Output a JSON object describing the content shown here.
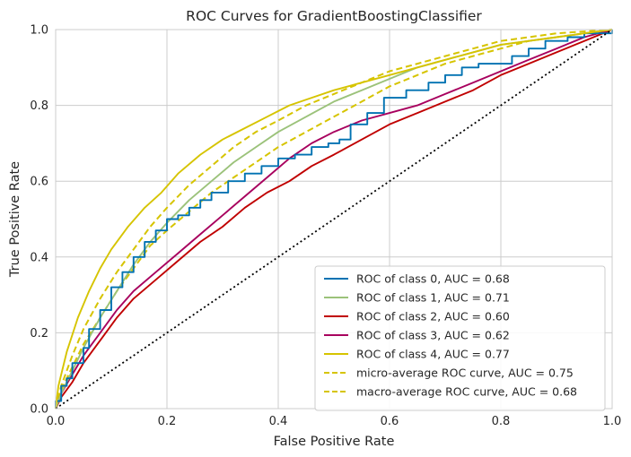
{
  "chart_data": {
    "type": "line",
    "title": "ROC Curves for GradientBoostingClassifier",
    "xlabel": "False Positive Rate",
    "ylabel": "True Positive Rate",
    "xlim": [
      0.0,
      1.0
    ],
    "ylim": [
      0.0,
      1.0
    ],
    "x_ticks": [
      "0.0",
      "0.2",
      "0.4",
      "0.6",
      "0.8",
      "1.0"
    ],
    "y_ticks": [
      "0.0",
      "0.2",
      "0.4",
      "0.6",
      "0.8",
      "1.0"
    ],
    "grid": true,
    "legend_position": "lower-right",
    "series": [
      {
        "name": "ROC of class 0, AUC = 0.68",
        "color": "#0072b2",
        "dash": "solid",
        "step": true,
        "points": [
          [
            0,
            0
          ],
          [
            0.0,
            0.02
          ],
          [
            0.01,
            0.06
          ],
          [
            0.02,
            0.08
          ],
          [
            0.03,
            0.12
          ],
          [
            0.05,
            0.16
          ],
          [
            0.06,
            0.21
          ],
          [
            0.08,
            0.26
          ],
          [
            0.1,
            0.32
          ],
          [
            0.12,
            0.36
          ],
          [
            0.14,
            0.4
          ],
          [
            0.16,
            0.44
          ],
          [
            0.18,
            0.47
          ],
          [
            0.2,
            0.5
          ],
          [
            0.22,
            0.51
          ],
          [
            0.24,
            0.53
          ],
          [
            0.26,
            0.55
          ],
          [
            0.28,
            0.57
          ],
          [
            0.31,
            0.6
          ],
          [
            0.34,
            0.62
          ],
          [
            0.37,
            0.64
          ],
          [
            0.4,
            0.66
          ],
          [
            0.43,
            0.67
          ],
          [
            0.46,
            0.69
          ],
          [
            0.49,
            0.7
          ],
          [
            0.51,
            0.71
          ],
          [
            0.53,
            0.75
          ],
          [
            0.56,
            0.78
          ],
          [
            0.59,
            0.82
          ],
          [
            0.63,
            0.84
          ],
          [
            0.67,
            0.86
          ],
          [
            0.7,
            0.88
          ],
          [
            0.73,
            0.9
          ],
          [
            0.76,
            0.91
          ],
          [
            0.8,
            0.91
          ],
          [
            0.82,
            0.93
          ],
          [
            0.85,
            0.95
          ],
          [
            0.88,
            0.97
          ],
          [
            0.92,
            0.98
          ],
          [
            0.95,
            0.99
          ],
          [
            1.0,
            1.0
          ]
        ]
      },
      {
        "name": "ROC of class 1, AUC = 0.71",
        "color": "#9bc27a",
        "dash": "solid",
        "step": false,
        "points": [
          [
            0,
            0
          ],
          [
            0.01,
            0.04
          ],
          [
            0.03,
            0.1
          ],
          [
            0.05,
            0.16
          ],
          [
            0.08,
            0.24
          ],
          [
            0.11,
            0.31
          ],
          [
            0.14,
            0.38
          ],
          [
            0.17,
            0.44
          ],
          [
            0.2,
            0.49
          ],
          [
            0.24,
            0.55
          ],
          [
            0.28,
            0.6
          ],
          [
            0.32,
            0.65
          ],
          [
            0.36,
            0.69
          ],
          [
            0.4,
            0.73
          ],
          [
            0.45,
            0.77
          ],
          [
            0.5,
            0.81
          ],
          [
            0.55,
            0.84
          ],
          [
            0.6,
            0.87
          ],
          [
            0.65,
            0.9
          ],
          [
            0.7,
            0.92
          ],
          [
            0.75,
            0.94
          ],
          [
            0.8,
            0.96
          ],
          [
            0.85,
            0.97
          ],
          [
            0.9,
            0.98
          ],
          [
            0.95,
            0.99
          ],
          [
            1.0,
            1.0
          ]
        ]
      },
      {
        "name": "ROC of class 2, AUC = 0.60",
        "color": "#c00000",
        "dash": "solid",
        "step": false,
        "points": [
          [
            0,
            0
          ],
          [
            0.01,
            0.03
          ],
          [
            0.03,
            0.07
          ],
          [
            0.05,
            0.12
          ],
          [
            0.08,
            0.18
          ],
          [
            0.11,
            0.24
          ],
          [
            0.14,
            0.29
          ],
          [
            0.18,
            0.34
          ],
          [
            0.22,
            0.39
          ],
          [
            0.26,
            0.44
          ],
          [
            0.3,
            0.48
          ],
          [
            0.34,
            0.53
          ],
          [
            0.38,
            0.57
          ],
          [
            0.42,
            0.6
          ],
          [
            0.46,
            0.64
          ],
          [
            0.5,
            0.67
          ],
          [
            0.55,
            0.71
          ],
          [
            0.6,
            0.75
          ],
          [
            0.65,
            0.78
          ],
          [
            0.7,
            0.81
          ],
          [
            0.75,
            0.84
          ],
          [
            0.8,
            0.88
          ],
          [
            0.85,
            0.91
          ],
          [
            0.9,
            0.94
          ],
          [
            0.95,
            0.97
          ],
          [
            1.0,
            1.0
          ]
        ]
      },
      {
        "name": "ROC of class 3, AUC = 0.62",
        "color": "#a8005e",
        "dash": "solid",
        "step": false,
        "points": [
          [
            0,
            0
          ],
          [
            0.01,
            0.04
          ],
          [
            0.03,
            0.09
          ],
          [
            0.05,
            0.14
          ],
          [
            0.08,
            0.2
          ],
          [
            0.11,
            0.26
          ],
          [
            0.14,
            0.31
          ],
          [
            0.18,
            0.36
          ],
          [
            0.22,
            0.41
          ],
          [
            0.26,
            0.46
          ],
          [
            0.3,
            0.51
          ],
          [
            0.34,
            0.56
          ],
          [
            0.38,
            0.61
          ],
          [
            0.42,
            0.66
          ],
          [
            0.46,
            0.7
          ],
          [
            0.5,
            0.73
          ],
          [
            0.55,
            0.76
          ],
          [
            0.6,
            0.78
          ],
          [
            0.65,
            0.8
          ],
          [
            0.7,
            0.83
          ],
          [
            0.75,
            0.86
          ],
          [
            0.8,
            0.89
          ],
          [
            0.85,
            0.92
          ],
          [
            0.9,
            0.95
          ],
          [
            0.95,
            0.98
          ],
          [
            1.0,
            1.0
          ]
        ]
      },
      {
        "name": "ROC of class 4, AUC = 0.77",
        "color": "#d6c400",
        "dash": "solid",
        "step": false,
        "points": [
          [
            0,
            0
          ],
          [
            0.005,
            0.06
          ],
          [
            0.02,
            0.15
          ],
          [
            0.04,
            0.24
          ],
          [
            0.06,
            0.31
          ],
          [
            0.08,
            0.37
          ],
          [
            0.1,
            0.42
          ],
          [
            0.13,
            0.48
          ],
          [
            0.16,
            0.53
          ],
          [
            0.19,
            0.57
          ],
          [
            0.22,
            0.62
          ],
          [
            0.26,
            0.67
          ],
          [
            0.3,
            0.71
          ],
          [
            0.34,
            0.74
          ],
          [
            0.38,
            0.77
          ],
          [
            0.42,
            0.8
          ],
          [
            0.46,
            0.82
          ],
          [
            0.5,
            0.84
          ],
          [
            0.55,
            0.86
          ],
          [
            0.6,
            0.88
          ],
          [
            0.65,
            0.9
          ],
          [
            0.7,
            0.92
          ],
          [
            0.75,
            0.94
          ],
          [
            0.8,
            0.96
          ],
          [
            0.85,
            0.97
          ],
          [
            0.9,
            0.98
          ],
          [
            0.95,
            0.99
          ],
          [
            1.0,
            1.0
          ]
        ]
      },
      {
        "name": "micro-average ROC curve, AUC = 0.75",
        "color": "#d6c400",
        "dash": "dashed",
        "step": false,
        "points": [
          [
            0,
            0
          ],
          [
            0.01,
            0.06
          ],
          [
            0.03,
            0.14
          ],
          [
            0.05,
            0.21
          ],
          [
            0.08,
            0.29
          ],
          [
            0.11,
            0.36
          ],
          [
            0.14,
            0.42
          ],
          [
            0.17,
            0.48
          ],
          [
            0.2,
            0.53
          ],
          [
            0.24,
            0.59
          ],
          [
            0.28,
            0.64
          ],
          [
            0.32,
            0.69
          ],
          [
            0.36,
            0.73
          ],
          [
            0.4,
            0.76
          ],
          [
            0.45,
            0.8
          ],
          [
            0.5,
            0.83
          ],
          [
            0.55,
            0.86
          ],
          [
            0.6,
            0.89
          ],
          [
            0.65,
            0.91
          ],
          [
            0.7,
            0.93
          ],
          [
            0.75,
            0.95
          ],
          [
            0.8,
            0.97
          ],
          [
            0.85,
            0.98
          ],
          [
            0.9,
            0.99
          ],
          [
            0.95,
            0.995
          ],
          [
            1.0,
            1.0
          ]
        ]
      },
      {
        "name": "macro-average ROC curve, AUC = 0.68",
        "color": "#d6c400",
        "dash": "dashed",
        "step": false,
        "points": [
          [
            0,
            0
          ],
          [
            0.01,
            0.05
          ],
          [
            0.03,
            0.11
          ],
          [
            0.05,
            0.17
          ],
          [
            0.08,
            0.24
          ],
          [
            0.11,
            0.31
          ],
          [
            0.14,
            0.37
          ],
          [
            0.17,
            0.43
          ],
          [
            0.2,
            0.47
          ],
          [
            0.24,
            0.52
          ],
          [
            0.28,
            0.57
          ],
          [
            0.32,
            0.61
          ],
          [
            0.36,
            0.65
          ],
          [
            0.4,
            0.69
          ],
          [
            0.45,
            0.73
          ],
          [
            0.5,
            0.77
          ],
          [
            0.55,
            0.81
          ],
          [
            0.6,
            0.85
          ],
          [
            0.65,
            0.88
          ],
          [
            0.7,
            0.91
          ],
          [
            0.75,
            0.93
          ],
          [
            0.8,
            0.95
          ],
          [
            0.85,
            0.97
          ],
          [
            0.9,
            0.98
          ],
          [
            0.95,
            0.99
          ],
          [
            1.0,
            1.0
          ]
        ]
      }
    ],
    "reference_line": {
      "points": [
        [
          0,
          0
        ],
        [
          1,
          1
        ]
      ],
      "color": "#000000",
      "dash": "dotted"
    }
  }
}
